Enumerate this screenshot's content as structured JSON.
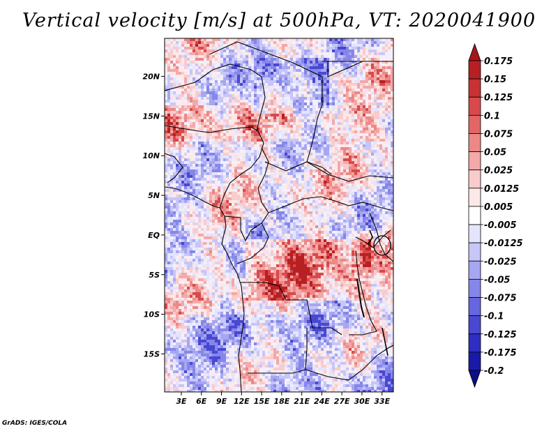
{
  "title": "Vertical velocity [m/s] at 500hPa, VT: 2020041900",
  "credit": "GrADS: IGES/COLA",
  "map": {
    "lat_labels": [
      "20N",
      "15N",
      "10N",
      "5N",
      "EQ",
      "5S",
      "10S",
      "15S"
    ],
    "lat_values": [
      20,
      15,
      10,
      5,
      0,
      -5,
      -10,
      -15
    ],
    "lon_labels": [
      "3E",
      "6E",
      "9E",
      "12E",
      "15E",
      "18E",
      "21E",
      "24E",
      "27E",
      "30E",
      "33E"
    ],
    "lon_values": [
      3,
      6,
      9,
      12,
      15,
      18,
      21,
      24,
      27,
      30,
      33
    ],
    "lat_range": [
      -19.8,
      24.8
    ],
    "lon_range": [
      0.5,
      34.7
    ]
  },
  "colorbar": {
    "labels": [
      "0.175",
      "0.15",
      "0.125",
      "0.1",
      "0.075",
      "0.05",
      "0.025",
      "0.0125",
      "0.005",
      "-0.005",
      "-0.0125",
      "-0.025",
      "-0.05",
      "-0.075",
      "-0.1",
      "-0.125",
      "-0.175",
      "-0.2"
    ],
    "colors": [
      "#a4161a",
      "#b72022",
      "#c93233",
      "#d84a4a",
      "#e26666",
      "#ec8888",
      "#f4a8a8",
      "#f9cccc",
      "#fde8e8",
      "#ffffff",
      "#e4e4ff",
      "#c6c6f9",
      "#a6a6f1",
      "#8686e9",
      "#6666df",
      "#4848d2",
      "#2e2ec2",
      "#1a1aa8",
      "#0c0c8c"
    ],
    "top_arrow_color": "#a4161a",
    "bottom_arrow_color": "#0c0c8c"
  }
}
